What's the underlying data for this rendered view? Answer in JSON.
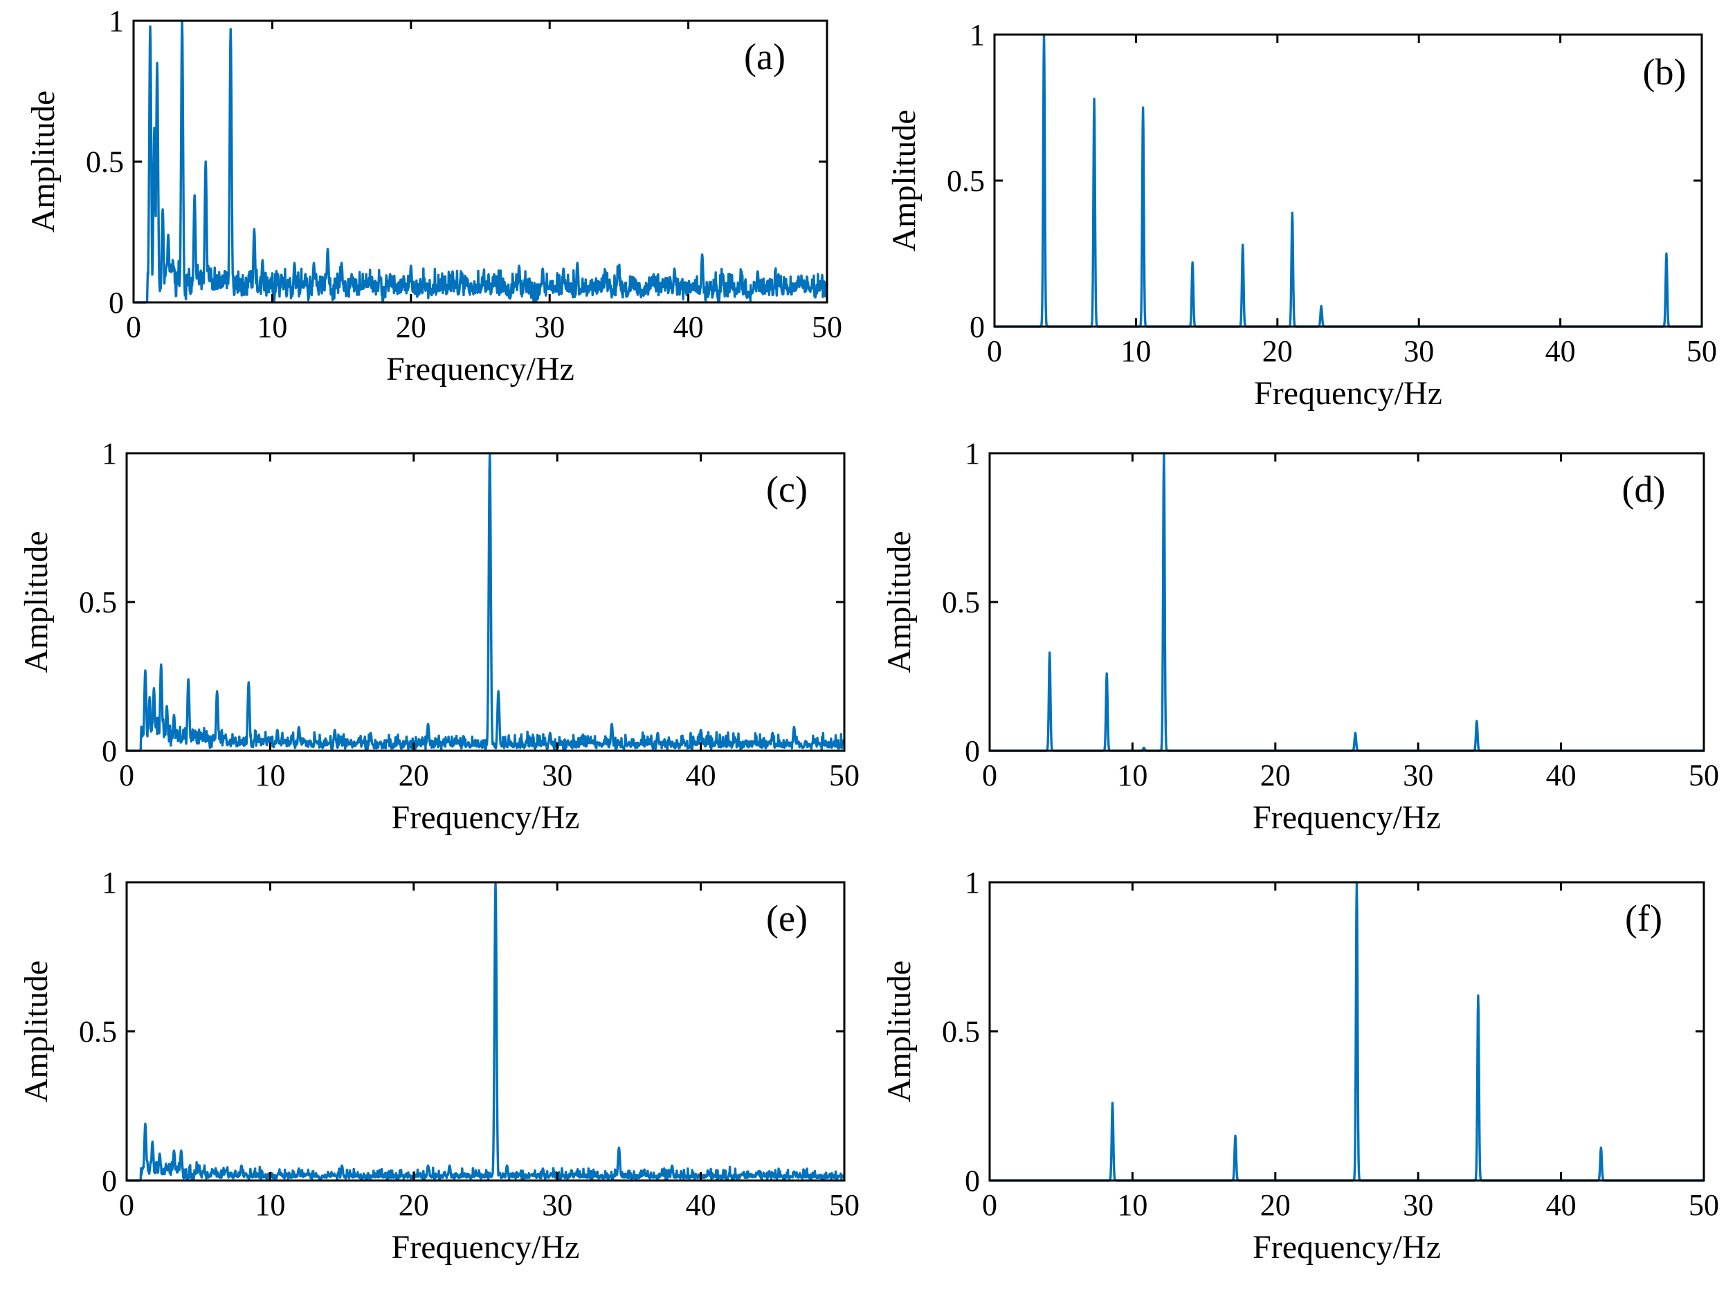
{
  "figure": {
    "colors": {
      "series": "#0072BD",
      "axes": "#000000",
      "background": "#FFFFFF"
    }
  },
  "chart_data": [
    {
      "id": "a",
      "panel_label": "(a)",
      "type": "line",
      "xlabel": "Frequency/Hz",
      "ylabel": "Amplitude",
      "xlim": [
        0,
        50
      ],
      "ylim": [
        0,
        1
      ],
      "xticks": [
        0,
        10,
        20,
        30,
        40,
        50
      ],
      "xtick_labels": [
        "0",
        "10",
        "20",
        "30",
        "40",
        "50"
      ],
      "yticks": [
        0,
        0.5,
        1
      ],
      "ytick_labels": [
        "0",
        "0.5",
        "1"
      ],
      "style": "noisy",
      "noise": {
        "start": 1.0,
        "base": 0.06,
        "decay": 0.06,
        "decay_rate": 0.15,
        "fluct": 0.05,
        "seed": 11
      },
      "peaks": [
        [
          1.2,
          0.98
        ],
        [
          1.5,
          0.62
        ],
        [
          1.7,
          0.85
        ],
        [
          2.1,
          0.33
        ],
        [
          2.5,
          0.24
        ],
        [
          3.5,
          1.0
        ],
        [
          4.4,
          0.38
        ],
        [
          5.2,
          0.5
        ],
        [
          7.0,
          0.97
        ],
        [
          8.7,
          0.26
        ],
        [
          9.3,
          0.15
        ],
        [
          11.6,
          0.14
        ],
        [
          13.0,
          0.14
        ],
        [
          14.0,
          0.19
        ],
        [
          15.0,
          0.14
        ],
        [
          18.5,
          0.1
        ],
        [
          20.0,
          0.13
        ],
        [
          23.0,
          0.11
        ],
        [
          26.0,
          0.1
        ],
        [
          27.8,
          0.13
        ],
        [
          29.5,
          0.12
        ],
        [
          31.0,
          0.12
        ],
        [
          32.0,
          0.14
        ],
        [
          35.0,
          0.1
        ],
        [
          37.5,
          0.1
        ],
        [
          39.0,
          0.12
        ],
        [
          41.0,
          0.17
        ],
        [
          42.5,
          0.1
        ],
        [
          45.0,
          0.11
        ],
        [
          46.5,
          0.1
        ],
        [
          49.0,
          0.05
        ]
      ]
    },
    {
      "id": "b",
      "panel_label": "(b)",
      "type": "line",
      "xlabel": "Frequency/Hz",
      "ylabel": "Amplitude",
      "xlim": [
        0,
        50
      ],
      "ylim": [
        0,
        1
      ],
      "xticks": [
        0,
        10,
        20,
        30,
        40,
        50
      ],
      "xtick_labels": [
        "0",
        "10",
        "20",
        "30",
        "40",
        "50"
      ],
      "yticks": [
        0,
        0.5,
        1
      ],
      "ytick_labels": [
        "0",
        "0.5",
        "1"
      ],
      "style": "clean",
      "peaks": [
        [
          3.5,
          1.0
        ],
        [
          7.05,
          0.78
        ],
        [
          10.5,
          0.75
        ],
        [
          14.0,
          0.22
        ],
        [
          17.55,
          0.28
        ],
        [
          21.05,
          0.39
        ],
        [
          23.1,
          0.07
        ],
        [
          47.5,
          0.25
        ]
      ]
    },
    {
      "id": "c",
      "panel_label": "(c)",
      "type": "line",
      "xlabel": "Frequency/Hz",
      "ylabel": "Amplitude",
      "xlim": [
        0,
        50
      ],
      "ylim": [
        0,
        1
      ],
      "xticks": [
        0,
        10,
        20,
        30,
        40,
        50
      ],
      "xtick_labels": [
        "0",
        "10",
        "20",
        "30",
        "40",
        "50"
      ],
      "yticks": [
        0,
        0.5,
        1
      ],
      "ytick_labels": [
        "0",
        "0.5",
        "1"
      ],
      "style": "noisy",
      "noise": {
        "start": 1.0,
        "base": 0.025,
        "decay": 0.07,
        "decay_rate": 0.25,
        "fluct": 0.035,
        "seed": 23
      },
      "peaks": [
        [
          1.3,
          0.27
        ],
        [
          1.6,
          0.18
        ],
        [
          1.9,
          0.21
        ],
        [
          2.4,
          0.29
        ],
        [
          2.8,
          0.15
        ],
        [
          3.3,
          0.12
        ],
        [
          4.3,
          0.24
        ],
        [
          6.3,
          0.2
        ],
        [
          8.5,
          0.23
        ],
        [
          10.5,
          0.07
        ],
        [
          12.0,
          0.08
        ],
        [
          14.5,
          0.07
        ],
        [
          17.0,
          0.06
        ],
        [
          21.0,
          0.09
        ],
        [
          25.3,
          1.0
        ],
        [
          25.9,
          0.2
        ],
        [
          29.5,
          0.06
        ],
        [
          33.8,
          0.09
        ],
        [
          37.0,
          0.06
        ],
        [
          40.0,
          0.07
        ],
        [
          45.0,
          0.06
        ],
        [
          46.5,
          0.08
        ]
      ]
    },
    {
      "id": "d",
      "panel_label": "(d)",
      "type": "line",
      "xlabel": "Frequency/Hz",
      "ylabel": "Amplitude",
      "xlim": [
        0,
        50
      ],
      "ylim": [
        0,
        1
      ],
      "xticks": [
        0,
        10,
        20,
        30,
        40,
        50
      ],
      "xtick_labels": [
        "0",
        "10",
        "20",
        "30",
        "40",
        "50"
      ],
      "yticks": [
        0,
        0.5,
        1
      ],
      "ytick_labels": [
        "0",
        "0.5",
        "1"
      ],
      "style": "clean",
      "peaks": [
        [
          4.2,
          0.33
        ],
        [
          8.2,
          0.26
        ],
        [
          10.8,
          0.01
        ],
        [
          12.2,
          1.0
        ],
        [
          25.6,
          0.06
        ],
        [
          34.1,
          0.1
        ]
      ]
    },
    {
      "id": "e",
      "panel_label": "(e)",
      "type": "line",
      "xlabel": "Frequency/Hz",
      "ylabel": "Amplitude",
      "xlim": [
        0,
        50
      ],
      "ylim": [
        0,
        1
      ],
      "xticks": [
        0,
        10,
        20,
        30,
        40,
        50
      ],
      "xtick_labels": [
        "0",
        "10",
        "20",
        "30",
        "40",
        "50"
      ],
      "yticks": [
        0,
        0.5,
        1
      ],
      "ytick_labels": [
        "0",
        "0.5",
        "1"
      ],
      "style": "noisy",
      "noise": {
        "start": 1.0,
        "base": 0.015,
        "decay": 0.05,
        "decay_rate": 0.3,
        "fluct": 0.025,
        "seed": 37
      },
      "peaks": [
        [
          1.3,
          0.19
        ],
        [
          1.8,
          0.13
        ],
        [
          2.3,
          0.09
        ],
        [
          3.3,
          0.1
        ],
        [
          3.8,
          0.1
        ],
        [
          8.0,
          0.05
        ],
        [
          12.0,
          0.04
        ],
        [
          15.0,
          0.05
        ],
        [
          21.0,
          0.05
        ],
        [
          22.5,
          0.05
        ],
        [
          25.7,
          1.0
        ],
        [
          26.5,
          0.05
        ],
        [
          29.0,
          0.04
        ],
        [
          34.3,
          0.11
        ],
        [
          38.0,
          0.05
        ],
        [
          44.0,
          0.03
        ],
        [
          46.5,
          0.03
        ]
      ]
    },
    {
      "id": "f",
      "panel_label": "(f)",
      "type": "line",
      "xlabel": "Frequency/Hz",
      "ylabel": "Amplitude",
      "xlim": [
        0,
        50
      ],
      "ylim": [
        0,
        1
      ],
      "xticks": [
        0,
        10,
        20,
        30,
        40,
        50
      ],
      "xtick_labels": [
        "0",
        "10",
        "20",
        "30",
        "40",
        "50"
      ],
      "yticks": [
        0,
        0.5,
        1
      ],
      "ytick_labels": [
        "0",
        "0.5",
        "1"
      ],
      "style": "clean",
      "peaks": [
        [
          8.6,
          0.26
        ],
        [
          17.2,
          0.15
        ],
        [
          25.7,
          1.0
        ],
        [
          34.2,
          0.62
        ],
        [
          42.8,
          0.11
        ]
      ]
    }
  ]
}
